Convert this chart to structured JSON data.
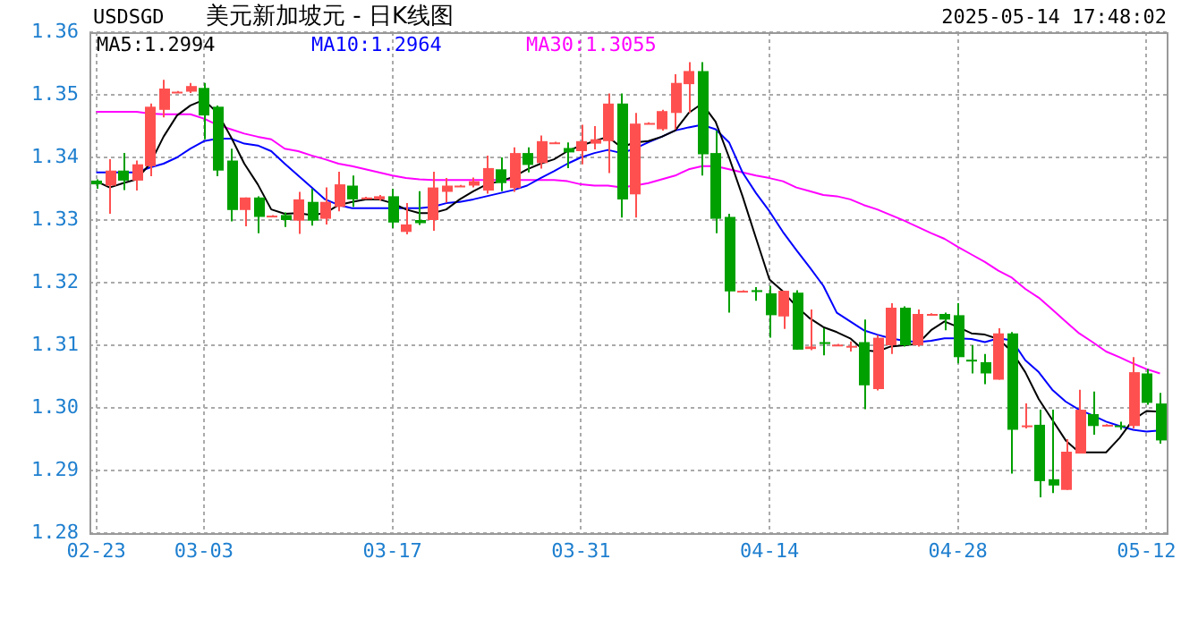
{
  "chart_data": {
    "type": "candlestick",
    "title": "美元新加坡元 - 日K线图",
    "annotations": [
      "USDSGD",
      "2025-05-14 17:48:02"
    ],
    "categories": [
      "02-23",
      null,
      null,
      null,
      null,
      null,
      null,
      null,
      "03-03",
      null,
      null,
      null,
      null,
      null,
      null,
      null,
      null,
      null,
      null,
      null,
      null,
      null,
      "03-17",
      null,
      null,
      null,
      null,
      null,
      null,
      null,
      null,
      null,
      null,
      null,
      null,
      null,
      "03-31",
      null,
      null,
      null,
      null,
      null,
      null,
      null,
      null,
      null,
      null,
      null,
      null,
      null,
      "04-14",
      null,
      null,
      null,
      null,
      null,
      null,
      null,
      null,
      null,
      null,
      null,
      null,
      null,
      "04-28",
      null,
      null,
      null,
      null,
      null,
      null,
      null,
      null,
      null,
      null,
      null,
      null,
      null,
      "05-12",
      null
    ],
    "ohlc": [
      [
        1.3363,
        1.3365,
        1.335,
        1.3357
      ],
      [
        1.3355,
        1.3397,
        1.331,
        1.3379
      ],
      [
        1.3379,
        1.3407,
        1.3348,
        1.3363
      ],
      [
        1.3363,
        1.3395,
        1.3347,
        1.3389
      ],
      [
        1.3386,
        1.3486,
        1.337,
        1.3481
      ],
      [
        1.3476,
        1.3524,
        1.3464,
        1.351
      ],
      [
        1.3504,
        1.3506,
        1.3503,
        1.3505
      ],
      [
        1.3505,
        1.3519,
        1.3503,
        1.3514
      ],
      [
        1.3511,
        1.3519,
        1.3429,
        1.3467
      ],
      [
        1.3481,
        1.3483,
        1.337,
        1.3379
      ],
      [
        1.3395,
        1.3414,
        1.3298,
        1.3316
      ],
      [
        1.3316,
        1.3336,
        1.329,
        1.3336
      ],
      [
        1.3336,
        1.3338,
        1.3279,
        1.3305
      ],
      [
        1.3306,
        1.3308,
        1.3305,
        1.3307
      ],
      [
        1.3308,
        1.3312,
        1.3289,
        1.33
      ],
      [
        1.3299,
        1.3345,
        1.3278,
        1.3333
      ],
      [
        1.3329,
        1.335,
        1.3291,
        1.3299
      ],
      [
        1.3302,
        1.3352,
        1.3293,
        1.3329
      ],
      [
        1.3321,
        1.3377,
        1.3314,
        1.3357
      ],
      [
        1.3355,
        1.3371,
        1.3321,
        1.3333
      ],
      [
        1.3334,
        1.3337,
        1.3333,
        1.3336
      ],
      [
        1.3333,
        1.334,
        1.3331,
        1.3338
      ],
      [
        1.3338,
        1.335,
        1.3287,
        1.3296
      ],
      [
        1.3281,
        1.3327,
        1.3277,
        1.3293
      ],
      [
        1.33,
        1.3346,
        1.3292,
        1.3295
      ],
      [
        1.33,
        1.3377,
        1.3283,
        1.3352
      ],
      [
        1.3345,
        1.3367,
        1.3328,
        1.3355
      ],
      [
        1.3354,
        1.3356,
        1.3353,
        1.3355
      ],
      [
        1.3355,
        1.3368,
        1.3352,
        1.3362
      ],
      [
        1.3347,
        1.3403,
        1.3342,
        1.3383
      ],
      [
        1.3381,
        1.34,
        1.3346,
        1.3359
      ],
      [
        1.3351,
        1.3416,
        1.3345,
        1.3407
      ],
      [
        1.3407,
        1.3416,
        1.3376,
        1.3388
      ],
      [
        1.3391,
        1.3435,
        1.3382,
        1.3426
      ],
      [
        1.3423,
        1.3425,
        1.3422,
        1.3424
      ],
      [
        1.3415,
        1.3424,
        1.3383,
        1.3408
      ],
      [
        1.341,
        1.3452,
        1.3389,
        1.3426
      ],
      [
        1.3422,
        1.345,
        1.3413,
        1.3429
      ],
      [
        1.3426,
        1.3502,
        1.3375,
        1.3486
      ],
      [
        1.3486,
        1.3502,
        1.3304,
        1.3333
      ],
      [
        1.3341,
        1.3471,
        1.3304,
        1.3454
      ],
      [
        1.3454,
        1.3456,
        1.3453,
        1.3455
      ],
      [
        1.3445,
        1.3476,
        1.3443,
        1.3474
      ],
      [
        1.3471,
        1.3533,
        1.3445,
        1.3519
      ],
      [
        1.3517,
        1.3552,
        1.3471,
        1.3538
      ],
      [
        1.3538,
        1.3552,
        1.3371,
        1.3405
      ],
      [
        1.3407,
        1.3443,
        1.3279,
        1.3302
      ],
      [
        1.3305,
        1.331,
        1.3152,
        1.3186
      ],
      [
        1.3186,
        1.3188,
        1.3185,
        1.3187
      ],
      [
        1.3188,
        1.3193,
        1.3171,
        1.3185
      ],
      [
        1.3183,
        1.3195,
        1.3112,
        1.3148
      ],
      [
        1.3146,
        1.3187,
        1.3126,
        1.3187
      ],
      [
        1.3184,
        1.3188,
        1.3093,
        1.3093
      ],
      [
        1.3094,
        1.3157,
        1.3092,
        1.3098
      ],
      [
        1.3105,
        1.3127,
        1.3084,
        1.3102
      ],
      [
        1.31,
        1.3102,
        1.3099,
        1.3101
      ],
      [
        1.3098,
        1.3106,
        1.309,
        1.3099
      ],
      [
        1.3105,
        1.3141,
        1.2998,
        1.3036
      ],
      [
        1.303,
        1.3116,
        1.3028,
        1.3112
      ],
      [
        1.31,
        1.3167,
        1.3086,
        1.316
      ],
      [
        1.316,
        1.3162,
        1.3098,
        1.31
      ],
      [
        1.31,
        1.3157,
        1.3098,
        1.315
      ],
      [
        1.3149,
        1.3151,
        1.3148,
        1.315
      ],
      [
        1.315,
        1.3152,
        1.3124,
        1.3141
      ],
      [
        1.3148,
        1.3167,
        1.3071,
        1.3081
      ],
      [
        1.3077,
        1.31,
        1.3055,
        1.3074
      ],
      [
        1.3073,
        1.3086,
        1.3038,
        1.3055
      ],
      [
        1.3045,
        1.3127,
        1.3045,
        1.3119
      ],
      [
        1.3119,
        1.3121,
        1.2895,
        1.2965
      ],
      [
        1.297,
        1.3007,
        1.2967,
        1.2972
      ],
      [
        1.2973,
        1.2997,
        1.2857,
        1.2883
      ],
      [
        1.2886,
        1.2997,
        1.2864,
        1.2876
      ],
      [
        1.2869,
        1.295,
        1.2869,
        1.293
      ],
      [
        1.2927,
        1.3029,
        1.2927,
        1.2997
      ],
      [
        1.299,
        1.3026,
        1.2957,
        1.2971
      ],
      [
        1.2972,
        1.2974,
        1.2971,
        1.2973
      ],
      [
        1.2972,
        1.2978,
        1.2965,
        1.297
      ],
      [
        1.2971,
        1.3081,
        1.2967,
        1.3057
      ],
      [
        1.3055,
        1.3062,
        1.3005,
        1.3008
      ],
      [
        1.3007,
        1.3024,
        1.2943,
        1.2948
      ]
    ],
    "colors": [
      "#00a000",
      "#ff5050",
      "#00a000",
      "#ff5050",
      "#ff5050",
      "#ff5050",
      "#ff5050",
      "#ff5050",
      "#00a000",
      "#00a000",
      "#00a000",
      "#ff5050",
      "#00a000",
      "#ff5050",
      "#00a000",
      "#ff5050",
      "#00a000",
      "#ff5050",
      "#ff5050",
      "#00a000",
      "#ff5050",
      "#ff5050",
      "#00a000",
      "#ff5050",
      "#00a000",
      "#ff5050",
      "#ff5050",
      "#ff5050",
      "#ff5050",
      "#ff5050",
      "#00a000",
      "#ff5050",
      "#00a000",
      "#ff5050",
      "#ff5050",
      "#00a000",
      "#ff5050",
      "#ff5050",
      "#ff5050",
      "#00a000",
      "#ff5050",
      "#ff5050",
      "#ff5050",
      "#ff5050",
      "#ff5050",
      "#00a000",
      "#00a000",
      "#00a000",
      "#ff5050",
      "#00a000",
      "#00a000",
      "#ff5050",
      "#00a000",
      "#ff5050",
      "#00a000",
      "#ff5050",
      "#ff5050",
      "#00a000",
      "#ff5050",
      "#ff5050",
      "#00a000",
      "#ff5050",
      "#ff5050",
      "#00a000",
      "#00a000",
      "#00a000",
      "#00a000",
      "#ff5050",
      "#00a000",
      "#ff5050",
      "#00a000",
      "#00a000",
      "#ff5050",
      "#ff5050",
      "#00a000",
      "#ff5050",
      "#00a000",
      "#ff5050",
      "#00a000",
      "#00a000"
    ],
    "series": [
      {
        "name": "MA5:1.2994",
        "type": "line",
        "color": "#000000",
        "values": [
          1.3362,
          1.3352,
          1.3359,
          1.3365,
          1.339,
          1.3433,
          1.3467,
          1.3483,
          1.3492,
          1.3471,
          1.3433,
          1.339,
          1.3357,
          1.3317,
          1.331,
          1.3311,
          1.3308,
          1.3311,
          1.3324,
          1.3329,
          1.3333,
          1.3333,
          1.3327,
          1.3317,
          1.3311,
          1.3311,
          1.3317,
          1.3333,
          1.3346,
          1.3357,
          1.3362,
          1.3369,
          1.3381,
          1.339,
          1.3397,
          1.341,
          1.3419,
          1.3426,
          1.3433,
          1.3416,
          1.3424,
          1.3426,
          1.3433,
          1.3443,
          1.3471,
          1.3486,
          1.3457,
          1.34,
          1.3338,
          1.3271,
          1.3205,
          1.3186,
          1.3162,
          1.3143,
          1.3129,
          1.3121,
          1.3111,
          1.3092,
          1.309,
          1.3098,
          1.31,
          1.3102,
          1.3124,
          1.3138,
          1.3129,
          1.3119,
          1.3117,
          1.311,
          1.309,
          1.3057,
          1.3014,
          1.2981,
          1.2948,
          1.2929,
          1.2929,
          1.2929,
          1.2952,
          1.2981,
          1.2995,
          1.2994
        ]
      },
      {
        "name": "MA10:1.2964",
        "type": "line",
        "color": "#0000ff",
        "values": [
          1.3376,
          1.3376,
          1.3376,
          1.3376,
          1.3384,
          1.339,
          1.34,
          1.3414,
          1.3426,
          1.343,
          1.343,
          1.3422,
          1.3419,
          1.341,
          1.339,
          1.3371,
          1.3352,
          1.3333,
          1.3324,
          1.3319,
          1.3319,
          1.3319,
          1.3319,
          1.3319,
          1.3319,
          1.3321,
          1.3327,
          1.3329,
          1.3333,
          1.3338,
          1.3343,
          1.3348,
          1.3355,
          1.3367,
          1.3378,
          1.339,
          1.34,
          1.3407,
          1.3412,
          1.3407,
          1.3414,
          1.3424,
          1.3433,
          1.3443,
          1.3448,
          1.3452,
          1.3445,
          1.3424,
          1.3376,
          1.3343,
          1.3314,
          1.3281,
          1.3252,
          1.3224,
          1.3195,
          1.3152,
          1.3138,
          1.3124,
          1.3117,
          1.3111,
          1.3107,
          1.3105,
          1.3107,
          1.3111,
          1.3111,
          1.311,
          1.3105,
          1.3111,
          1.3108,
          1.3076,
          1.3057,
          1.3029,
          1.301,
          1.2997,
          1.2988,
          1.2978,
          1.2971,
          1.2965,
          1.2962,
          1.2964
        ]
      },
      {
        "name": "MA30:1.3055",
        "type": "line",
        "color": "#ff00ff",
        "values": [
          1.3473,
          1.3473,
          1.3473,
          1.3473,
          1.347,
          1.3469,
          1.3469,
          1.3469,
          1.3462,
          1.3452,
          1.3445,
          1.3438,
          1.3433,
          1.3429,
          1.3414,
          1.341,
          1.3403,
          1.3397,
          1.339,
          1.3386,
          1.3381,
          1.3376,
          1.3371,
          1.3367,
          1.3365,
          1.3364,
          1.3364,
          1.3364,
          1.3364,
          1.3364,
          1.3364,
          1.3364,
          1.3364,
          1.3364,
          1.3364,
          1.3362,
          1.3357,
          1.3355,
          1.3355,
          1.3352,
          1.3355,
          1.3359,
          1.3365,
          1.3371,
          1.3381,
          1.3386,
          1.3386,
          1.3381,
          1.3376,
          1.3371,
          1.3367,
          1.3362,
          1.3352,
          1.3346,
          1.334,
          1.3338,
          1.3333,
          1.3324,
          1.3317,
          1.3308,
          1.3299,
          1.3289,
          1.3279,
          1.327,
          1.3257,
          1.3245,
          1.3233,
          1.3219,
          1.3208,
          1.319,
          1.3176,
          1.3157,
          1.3138,
          1.3119,
          1.3105,
          1.309,
          1.3081,
          1.3071,
          1.3062,
          1.3055
        ]
      }
    ],
    "ylim": [
      1.28,
      1.36
    ],
    "yticks": [
      1.28,
      1.29,
      {
        "value": 1.3,
        "label": "1.30"
      },
      1.31,
      1.32,
      1.33,
      1.34,
      1.35,
      1.36
    ],
    "grid": true,
    "legend": "top left"
  }
}
